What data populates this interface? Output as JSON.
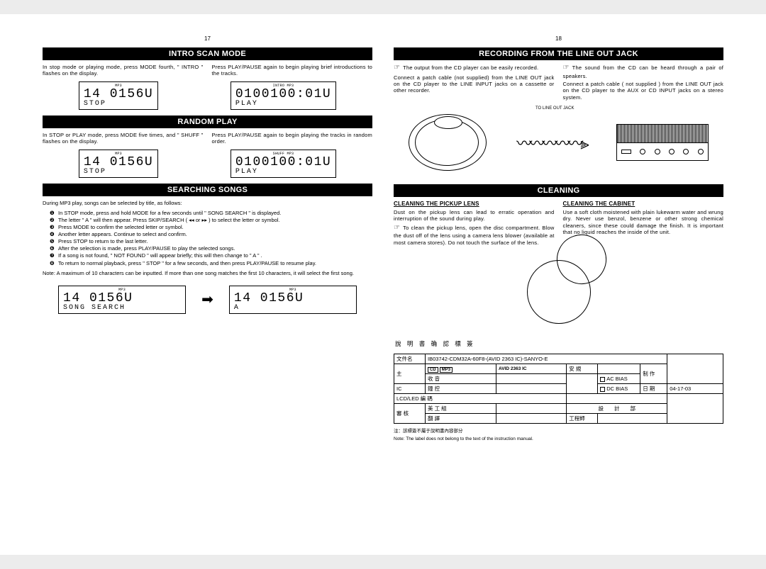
{
  "page17": "17",
  "page18": "18",
  "titles": {
    "intro": "INTRO SCAN MODE",
    "random": "RANDOM PLAY",
    "searching": "SEARCHING SONGS",
    "recording": "RECORDING FROM THE LINE OUT JACK",
    "cleaning": "CLEANING"
  },
  "intro": {
    "left": "In stop mode or playing mode, press MODE fourth, \" INTRO \" flashes on the display.",
    "right": "Press PLAY/PAUSE again to begin playing brief introductions to the tracks."
  },
  "intro_lcd_left": {
    "sup": "MP3",
    "row1": "14  0156U",
    "row2": "STOP"
  },
  "intro_lcd_right": {
    "sup": "INTRO MP3",
    "row1": "0100100:01U",
    "row2": "PLAY"
  },
  "random": {
    "left": "In STOP or PLAY mode, press MODE five times, and \"  SHUFF  \" flashes on the display.",
    "right": "Press PLAY/PAUSE again to begin playing the tracks in random order."
  },
  "random_lcd_left": {
    "sup": "MP3",
    "row1": "14  0156U",
    "row2": "STOP"
  },
  "random_lcd_right": {
    "sup": "SHUFF   MP3",
    "row1": "0100100:01U",
    "row2": "PLAY"
  },
  "searching": {
    "intro": "During MP3 play, songs can be selected by title, as follows:",
    "items": [
      "In STOP mode, press and hold MODE for a few seconds until \" SONG SEARCH \" is displayed.",
      "The letter \" A \" will then appear. Press SKIP/SEARCH (  ◂◂ or ▸▸  ) to select the letter or symbol.",
      "Press MODE to confirm the selected letter or symbol.",
      "Another letter appears. Continue to select and confirm.",
      "Press STOP to return to the last letter.",
      "After the selection is made, press PLAY/PAUSE to play the selected songs.",
      "If a song is not found, \"  NOT FOUND  \" will appear briefly; this will then change to \" A  \" .",
      "To return to normal playback, press \"  STOP  \" for a few seconds, and then press PLAY/PAUSE to resume play."
    ],
    "note": "Note: A maximum of 10 characters can be inputted. If more than one song matches the first 10 characters, it will select the first song."
  },
  "search_lcd_left": {
    "sup": "MP3",
    "row1": "14   0156U",
    "row2": "SONG SEARCH"
  },
  "search_lcd_right": {
    "sup": "MP3",
    "row1": "14   0156U",
    "row2": "A"
  },
  "arrow": "➡",
  "recording": {
    "left1": "The output from the CD player can be easily recorded.",
    "left2": "Connect a patch cable (not supplied) from the LINE OUT jack on the CD player to the LINE INPUT jacks on a cassette or other recorder.",
    "right1": "The sound from the CD can be heard through a pair of speakers.",
    "right2": "Connect a patch cable ( not supplied ) from the LINE OUT jack on the CD player to the AUX or CD INPUT jacks on a stereo system."
  },
  "diag_label": "TO LINE OUT JACK",
  "cleaning": {
    "lens_head": "CLEANING THE PICKUP LENS",
    "lens_p1": "Dust on the pickup lens can lead to erratic operation and interruption of the sound during play.",
    "lens_p2": "To clean the pickup lens, open the disc compartment. Blow the dust off of the lens using a camera lens blower (available at most camera stores). Do not touch the surface of the lens.",
    "cab_head": "CLEANING THE CABINET",
    "cab_p": "Use a soft cloth moistened with plain lukewarm water and wrung dry. Never use benzol, benzene or other strong chemical cleaners, since these could damage the finish. It is important that no liquid reaches the inside of the unit."
  },
  "label": {
    "header": "說 明 書 确 認 標 簽",
    "r1c1": "文件名",
    "r1c2": "IB03742-CDM32A-60F8-(AVID 2363 IC)-SANYO-E",
    "r2c1": "主",
    "r2c2_badge1": "CD",
    "r2c2_badge2": "MP3",
    "r2c3": "AVID 2363 IC",
    "r2c4": "安 規",
    "r2c5": "制 作",
    "r3c1": "控",
    "r3c2": "收 音",
    "r3c3": "AC BIAS",
    "r4c1": "IC",
    "r4c2": "鐘 控",
    "r4c3": "DC BIAS",
    "r4c4": "日 期",
    "r4c5": "04-17-03",
    "r5": "LCD/LED 編 碼",
    "r6c1": "審 核",
    "r6c2": "美 工 組",
    "r6c3": "設　　計　　部",
    "r7c2": "翻 譯",
    "r7c3": "工程師"
  },
  "footnote_cn": "注：該標簽不屬于說明書內容部分",
  "footnote_en": "Note: The label does not belong to the text of the instruction manual.",
  "bullets": [
    "❶",
    "❷",
    "❸",
    "❹",
    "❺",
    "❻",
    "❼",
    "❽"
  ],
  "eye": "☞",
  "colors": {
    "bg": "#ececec",
    "text": "#000000",
    "titlebar_bg": "#000000",
    "titlebar_fg": "#ffffff"
  }
}
